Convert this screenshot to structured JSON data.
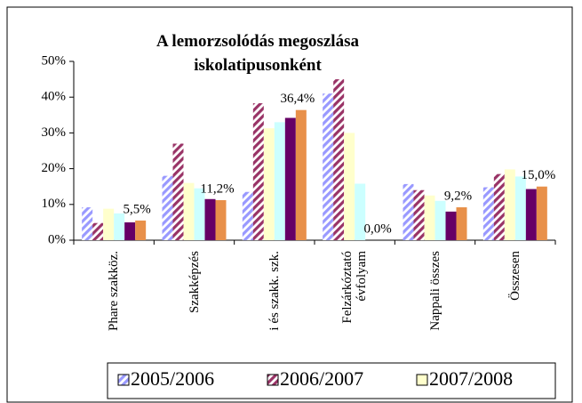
{
  "chart_data": {
    "type": "bar",
    "title": "A lemorzsolódás megoszlása iskolatipusonként",
    "categories": [
      "Phare szakköz.",
      "Szakképzés",
      "i és szakk. szk.",
      "Felzárkóztató évfolyam",
      "Nappali összes",
      "Összesen"
    ],
    "series": [
      {
        "name": "2005/2006",
        "color": "#9999ff",
        "hatch": true,
        "values": [
          9.2,
          18,
          13.5,
          41,
          15.7,
          14.8
        ]
      },
      {
        "name": "2006/2007",
        "color": "#993366",
        "hatch": true,
        "values": [
          4.8,
          27,
          38.3,
          45,
          14,
          18.5
        ]
      },
      {
        "name": "2007/2008",
        "color": "#ffffcc",
        "values": [
          8.8,
          16,
          31.3,
          30,
          12.5,
          19.8
        ]
      },
      {
        "color": "#ccffff",
        "values": [
          7.5,
          14.5,
          33,
          15.8,
          11,
          17.8
        ]
      },
      {
        "color": "#660066",
        "values": [
          5,
          11.5,
          34.2,
          0,
          8,
          14.3
        ]
      },
      {
        "color": "#e8904a",
        "values": [
          5.5,
          11.2,
          36.4,
          0,
          9.2,
          15
        ],
        "value_labels": [
          "5,5%",
          "11,2%",
          "36,4%",
          "0,0%",
          "9,2%",
          "15,0%"
        ]
      }
    ],
    "ylim": [
      0,
      50
    ],
    "yticks": [
      {
        "value": 0,
        "label": "0%"
      },
      {
        "value": 10,
        "label": "10%"
      },
      {
        "value": 20,
        "label": "20%"
      },
      {
        "value": 30,
        "label": "30%"
      },
      {
        "value": 40,
        "label": "40%"
      },
      {
        "value": 50,
        "label": "50%"
      }
    ],
    "grid": false
  }
}
